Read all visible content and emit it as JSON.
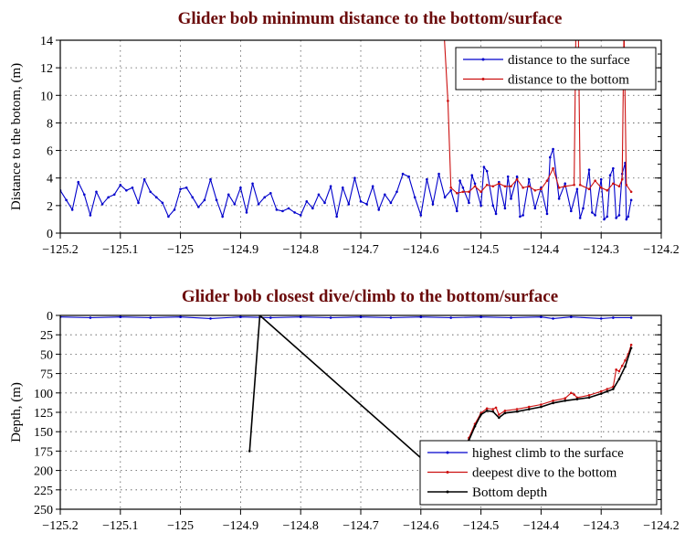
{
  "chart_data": [
    {
      "type": "line",
      "title": "Glider bob minimum distance to the bottom/surface",
      "xlabel": "",
      "ylabel": "Distance to the botom, (m)",
      "xlim": [
        -125.2,
        -124.2
      ],
      "ylim": [
        0,
        14
      ],
      "y_reversed": false,
      "grid": true,
      "legend_position": "top-right",
      "xticks": [
        -125.2,
        -125.1,
        -125,
        -124.9,
        -124.8,
        -124.7,
        -124.6,
        -124.5,
        -124.4,
        -124.3,
        -124.2
      ],
      "xtick_labels": [
        "−125.2",
        "−125.1",
        "−125",
        "−124.9",
        "−124.8",
        "−124.7",
        "−124.6",
        "−124.5",
        "−124.4",
        "−124.3",
        "−124.2"
      ],
      "yticks": [
        0,
        2,
        4,
        6,
        8,
        10,
        12,
        14
      ],
      "ytick_labels": [
        "0",
        "2",
        "4",
        "6",
        "8",
        "10",
        "12",
        "14"
      ],
      "series": [
        {
          "name": "distance to the surface",
          "color": "#0000cc",
          "x": [
            -125.2,
            -125.19,
            -125.18,
            -125.17,
            -125.16,
            -125.15,
            -125.14,
            -125.13,
            -125.12,
            -125.11,
            -125.1,
            -125.09,
            -125.08,
            -125.07,
            -125.06,
            -125.05,
            -125.04,
            -125.03,
            -125.02,
            -125.01,
            -125.0,
            -124.99,
            -124.98,
            -124.97,
            -124.96,
            -124.95,
            -124.94,
            -124.93,
            -124.92,
            -124.91,
            -124.9,
            -124.89,
            -124.88,
            -124.87,
            -124.86,
            -124.85,
            -124.84,
            -124.83,
            -124.82,
            -124.81,
            -124.8,
            -124.79,
            -124.78,
            -124.77,
            -124.76,
            -124.75,
            -124.74,
            -124.73,
            -124.72,
            -124.71,
            -124.7,
            -124.69,
            -124.68,
            -124.67,
            -124.66,
            -124.65,
            -124.64,
            -124.63,
            -124.62,
            -124.61,
            -124.6,
            -124.59,
            -124.58,
            -124.57,
            -124.56,
            -124.55,
            -124.54,
            -124.535,
            -124.53,
            -124.52,
            -124.515,
            -124.51,
            -124.5,
            -124.495,
            -124.49,
            -124.48,
            -124.475,
            -124.47,
            -124.46,
            -124.455,
            -124.45,
            -124.44,
            -124.435,
            -124.43,
            -124.42,
            -124.41,
            -124.4,
            -124.39,
            -124.385,
            -124.38,
            -124.37,
            -124.36,
            -124.35,
            -124.34,
            -124.335,
            -124.33,
            -124.32,
            -124.315,
            -124.31,
            -124.3,
            -124.295,
            -124.29,
            -124.285,
            -124.28,
            -124.275,
            -124.27,
            -124.265,
            -124.26,
            -124.258,
            -124.255,
            -124.25
          ],
          "y": [
            3.1,
            2.4,
            1.7,
            3.7,
            2.8,
            1.3,
            3.0,
            2.1,
            2.6,
            2.8,
            3.5,
            3.1,
            3.3,
            2.2,
            3.9,
            3.0,
            2.6,
            2.2,
            1.2,
            1.7,
            3.2,
            3.3,
            2.6,
            1.9,
            2.4,
            3.9,
            2.4,
            1.2,
            2.8,
            2.1,
            3.3,
            1.5,
            3.6,
            2.1,
            2.6,
            2.9,
            1.7,
            1.6,
            1.8,
            1.5,
            1.3,
            2.3,
            1.8,
            2.8,
            2.2,
            3.4,
            1.2,
            3.3,
            2.1,
            4.0,
            2.3,
            2.1,
            3.4,
            1.7,
            2.8,
            2.2,
            3.0,
            4.3,
            4.1,
            2.6,
            1.3,
            3.9,
            2.1,
            4.3,
            2.6,
            3.1,
            1.6,
            3.8,
            3.3,
            2.2,
            4.2,
            3.6,
            2.0,
            4.8,
            4.5,
            2.0,
            1.4,
            3.7,
            1.8,
            4.1,
            2.5,
            4.1,
            1.2,
            1.3,
            3.9,
            1.8,
            3.3,
            1.4,
            5.5,
            6.1,
            2.5,
            3.6,
            1.6,
            3.2,
            1.1,
            1.8,
            4.6,
            1.5,
            1.3,
            3.9,
            1.0,
            1.2,
            4.2,
            4.7,
            1.1,
            1.3,
            4.3,
            5.1,
            1.0,
            1.2,
            2.4
          ]
        },
        {
          "name": "distance to the bottom",
          "color": "#cc1111",
          "x": [
            -124.562,
            -124.555,
            -124.55,
            -124.54,
            -124.53,
            -124.52,
            -124.51,
            -124.5,
            -124.49,
            -124.48,
            -124.47,
            -124.46,
            -124.45,
            -124.44,
            -124.43,
            -124.42,
            -124.41,
            -124.4,
            -124.39,
            -124.38,
            -124.37,
            -124.36,
            -124.345,
            -124.342,
            -124.338,
            -124.335,
            -124.32,
            -124.31,
            -124.3,
            -124.29,
            -124.28,
            -124.27,
            -124.265,
            -124.262,
            -124.258,
            -124.25
          ],
          "y": [
            15,
            9.6,
            3.3,
            2.9,
            3.0,
            3.0,
            3.4,
            3.0,
            3.5,
            3.4,
            3.6,
            3.4,
            3.4,
            3.9,
            3.3,
            3.4,
            3.1,
            3.2,
            3.8,
            4.7,
            3.3,
            3.4,
            3.5,
            15,
            15,
            3.5,
            3.2,
            3.8,
            3.3,
            3.1,
            3.6,
            3.4,
            3.9,
            15,
            3.5,
            3.0
          ]
        }
      ]
    },
    {
      "type": "line",
      "title": "Glider bob closest dive/climb to the bottom/surface",
      "xlabel": "",
      "ylabel": "Depth, (m)",
      "xlim": [
        -125.2,
        -124.2
      ],
      "ylim": [
        0,
        250
      ],
      "y_reversed": true,
      "grid": true,
      "legend_position": "bottom-right",
      "xticks": [
        -125.2,
        -125.1,
        -125,
        -124.9,
        -124.8,
        -124.7,
        -124.6,
        -124.5,
        -124.4,
        -124.3,
        -124.2
      ],
      "xtick_labels": [
        "−125.2",
        "−125.1",
        "−125",
        "−124.9",
        "−124.8",
        "−124.7",
        "−124.6",
        "−124.5",
        "−124.4",
        "−124.3",
        "−124.2"
      ],
      "yticks": [
        0,
        25,
        50,
        75,
        100,
        125,
        150,
        175,
        200,
        225,
        250
      ],
      "ytick_labels": [
        "0",
        "25",
        "50",
        "75",
        "100",
        "125",
        "150",
        "175",
        "200",
        "225",
        "250"
      ],
      "series": [
        {
          "name": "highest climb to the surface",
          "color": "#0000cc",
          "x": [
            -125.2,
            -125.15,
            -125.1,
            -125.05,
            -125.0,
            -124.95,
            -124.9,
            -124.85,
            -124.8,
            -124.75,
            -124.7,
            -124.65,
            -124.6,
            -124.55,
            -124.5,
            -124.45,
            -124.4,
            -124.38,
            -124.35,
            -124.3,
            -124.28,
            -124.25
          ],
          "y": [
            2,
            3,
            2,
            3,
            2,
            4,
            2,
            3,
            2,
            3,
            2,
            3,
            2,
            3,
            2,
            3,
            2,
            4,
            2,
            4,
            3,
            3
          ]
        },
        {
          "name": "deepest dive to the bottom",
          "color": "#cc1111",
          "x": [
            -124.54,
            -124.53,
            -124.52,
            -124.51,
            -124.5,
            -124.49,
            -124.48,
            -124.475,
            -124.47,
            -124.46,
            -124.44,
            -124.42,
            -124.4,
            -124.38,
            -124.36,
            -124.35,
            -124.345,
            -124.34,
            -124.32,
            -124.3,
            -124.29,
            -124.28,
            -124.275,
            -124.27,
            -124.265,
            -124.26,
            -124.255,
            -124.25
          ],
          "y": [
            225,
            182,
            158,
            140,
            126,
            120,
            121,
            119,
            128,
            123,
            121,
            118,
            115,
            110,
            107,
            100,
            102,
            106,
            103,
            98,
            95,
            92,
            70,
            72,
            65,
            58,
            50,
            38
          ]
        },
        {
          "name": "Bottom depth",
          "color": "#000000",
          "x": [
            -124.885,
            -124.868,
            -124.54,
            -124.53,
            -124.52,
            -124.51,
            -124.5,
            -124.49,
            -124.48,
            -124.47,
            -124.46,
            -124.44,
            -124.42,
            -124.4,
            -124.38,
            -124.36,
            -124.34,
            -124.32,
            -124.3,
            -124.29,
            -124.28,
            -124.27,
            -124.26,
            -124.25
          ],
          "y": [
            175,
            0,
            225,
            184,
            161,
            143,
            128,
            123,
            124,
            132,
            126,
            124,
            121,
            118,
            113,
            110,
            108,
            106,
            101,
            98,
            95,
            82,
            66,
            42
          ]
        }
      ]
    }
  ]
}
